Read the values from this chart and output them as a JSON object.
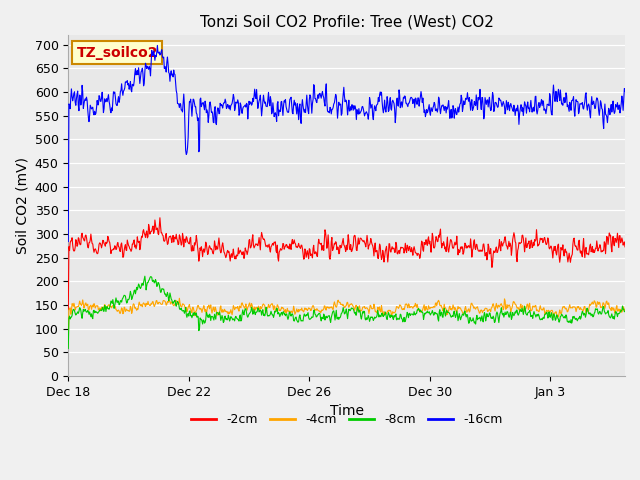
{
  "title": "Tonzi Soil CO2 Profile: Tree (West) CO2",
  "ylabel": "Soil CO2 (mV)",
  "xlabel": "Time",
  "annotation_text": "TZ_soilco2",
  "ylim": [
    0,
    720
  ],
  "yticks": [
    0,
    50,
    100,
    150,
    200,
    250,
    300,
    350,
    400,
    450,
    500,
    550,
    600,
    650,
    700
  ],
  "legend_labels": [
    "-2cm",
    "-4cm",
    "-8cm",
    "-16cm"
  ],
  "line_colors": [
    "#ff0000",
    "#ffa500",
    "#00cc00",
    "#0000ff"
  ],
  "bg_color": "#e8e8e8",
  "annotation_bg": "#ffffcc",
  "annotation_border": "#cc8800",
  "annotation_text_color": "#cc0000",
  "title_fontsize": 11,
  "axis_label_fontsize": 10,
  "tick_fontsize": 9,
  "legend_fontsize": 9
}
